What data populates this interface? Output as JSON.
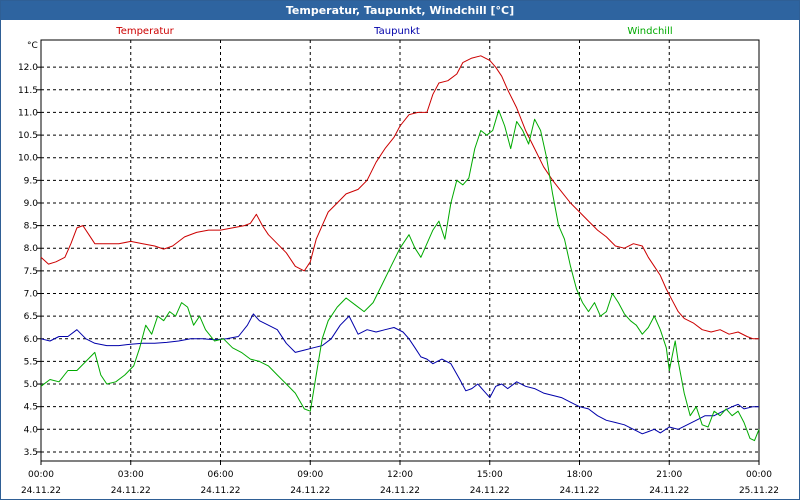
{
  "window": {
    "title": "Temperatur, Taupunkt, Windchill [°C]"
  },
  "chart_data": {
    "type": "line",
    "title": "Temperatur, Taupunkt, Windchill [°C]",
    "y_unit": "°C",
    "ylim": [
      3.3,
      12.6
    ],
    "xlim_hours": [
      0,
      24
    ],
    "y_ticks": [
      "3.5",
      "4.0",
      "4.5",
      "5.0",
      "5.5",
      "6.0",
      "6.5",
      "7.0",
      "7.5",
      "8.0",
      "8.5",
      "9.0",
      "9.5",
      "10.0",
      "10.5",
      "11.0",
      "11.5",
      "12.0"
    ],
    "x_ticks": [
      {
        "time": "00:00",
        "date": "24.11.22"
      },
      {
        "time": "03:00",
        "date": "24.11.22"
      },
      {
        "time": "06:00",
        "date": "24.11.22"
      },
      {
        "time": "09:00",
        "date": "24.11.22"
      },
      {
        "time": "12:00",
        "date": "24.11.22"
      },
      {
        "time": "15:00",
        "date": "24.11.22"
      },
      {
        "time": "18:00",
        "date": "24.11.22"
      },
      {
        "time": "21:00",
        "date": "24.11.22"
      },
      {
        "time": "00:00",
        "date": "25.11.22"
      }
    ],
    "grid": true,
    "series": [
      {
        "name": "Temperatur",
        "color": "#cc0000",
        "points": [
          [
            0,
            7.8
          ],
          [
            0.25,
            7.65
          ],
          [
            0.5,
            7.7
          ],
          [
            0.8,
            7.8
          ],
          [
            1.0,
            8.1
          ],
          [
            1.2,
            8.45
          ],
          [
            1.4,
            8.5
          ],
          [
            1.6,
            8.3
          ],
          [
            1.8,
            8.1
          ],
          [
            2.2,
            8.1
          ],
          [
            2.6,
            8.1
          ],
          [
            3.0,
            8.15
          ],
          [
            3.4,
            8.1
          ],
          [
            3.8,
            8.05
          ],
          [
            4.1,
            7.98
          ],
          [
            4.4,
            8.05
          ],
          [
            4.8,
            8.25
          ],
          [
            5.2,
            8.35
          ],
          [
            5.6,
            8.4
          ],
          [
            6.0,
            8.4
          ],
          [
            6.4,
            8.45
          ],
          [
            6.8,
            8.5
          ],
          [
            7.0,
            8.55
          ],
          [
            7.2,
            8.75
          ],
          [
            7.4,
            8.5
          ],
          [
            7.6,
            8.3
          ],
          [
            7.9,
            8.1
          ],
          [
            8.2,
            7.9
          ],
          [
            8.5,
            7.6
          ],
          [
            8.8,
            7.5
          ],
          [
            9.0,
            7.7
          ],
          [
            9.2,
            8.2
          ],
          [
            9.4,
            8.5
          ],
          [
            9.6,
            8.8
          ],
          [
            9.9,
            9.0
          ],
          [
            10.2,
            9.2
          ],
          [
            10.6,
            9.3
          ],
          [
            10.9,
            9.5
          ],
          [
            11.2,
            9.9
          ],
          [
            11.5,
            10.2
          ],
          [
            11.8,
            10.45
          ],
          [
            12.0,
            10.7
          ],
          [
            12.3,
            10.95
          ],
          [
            12.6,
            11.0
          ],
          [
            12.9,
            11.0
          ],
          [
            13.1,
            11.4
          ],
          [
            13.3,
            11.65
          ],
          [
            13.6,
            11.7
          ],
          [
            13.9,
            11.85
          ],
          [
            14.1,
            12.1
          ],
          [
            14.4,
            12.2
          ],
          [
            14.7,
            12.25
          ],
          [
            15.0,
            12.15
          ],
          [
            15.2,
            12.0
          ],
          [
            15.4,
            11.8
          ],
          [
            15.6,
            11.5
          ],
          [
            15.9,
            11.1
          ],
          [
            16.2,
            10.6
          ],
          [
            16.5,
            10.2
          ],
          [
            16.8,
            9.8
          ],
          [
            17.1,
            9.5
          ],
          [
            17.4,
            9.25
          ],
          [
            17.7,
            9.0
          ],
          [
            18.0,
            8.8
          ],
          [
            18.3,
            8.6
          ],
          [
            18.6,
            8.4
          ],
          [
            18.9,
            8.25
          ],
          [
            19.2,
            8.05
          ],
          [
            19.5,
            8.0
          ],
          [
            19.8,
            8.1
          ],
          [
            20.1,
            8.05
          ],
          [
            20.3,
            7.8
          ],
          [
            20.5,
            7.6
          ],
          [
            20.7,
            7.4
          ],
          [
            20.9,
            7.1
          ],
          [
            21.1,
            6.85
          ],
          [
            21.3,
            6.6
          ],
          [
            21.5,
            6.45
          ],
          [
            21.8,
            6.35
          ],
          [
            22.1,
            6.2
          ],
          [
            22.4,
            6.15
          ],
          [
            22.7,
            6.2
          ],
          [
            23.0,
            6.1
          ],
          [
            23.3,
            6.15
          ],
          [
            23.6,
            6.05
          ],
          [
            23.8,
            6.0
          ],
          [
            24.0,
            6.0
          ]
        ]
      },
      {
        "name": "Taupunkt",
        "color": "#0000aa",
        "points": [
          [
            0,
            6.0
          ],
          [
            0.3,
            5.95
          ],
          [
            0.6,
            6.05
          ],
          [
            0.9,
            6.05
          ],
          [
            1.2,
            6.2
          ],
          [
            1.5,
            6.0
          ],
          [
            1.8,
            5.9
          ],
          [
            2.2,
            5.85
          ],
          [
            2.6,
            5.85
          ],
          [
            3.0,
            5.88
          ],
          [
            3.4,
            5.9
          ],
          [
            3.8,
            5.9
          ],
          [
            4.2,
            5.92
          ],
          [
            4.6,
            5.95
          ],
          [
            5.0,
            6.0
          ],
          [
            5.4,
            6.0
          ],
          [
            5.8,
            5.98
          ],
          [
            6.2,
            6.0
          ],
          [
            6.6,
            6.05
          ],
          [
            6.9,
            6.3
          ],
          [
            7.1,
            6.55
          ],
          [
            7.3,
            6.4
          ],
          [
            7.6,
            6.3
          ],
          [
            7.9,
            6.2
          ],
          [
            8.2,
            5.9
          ],
          [
            8.5,
            5.7
          ],
          [
            8.8,
            5.75
          ],
          [
            9.1,
            5.8
          ],
          [
            9.4,
            5.85
          ],
          [
            9.7,
            6.0
          ],
          [
            10.0,
            6.3
          ],
          [
            10.3,
            6.5
          ],
          [
            10.6,
            6.1
          ],
          [
            10.9,
            6.2
          ],
          [
            11.2,
            6.15
          ],
          [
            11.5,
            6.2
          ],
          [
            11.8,
            6.25
          ],
          [
            12.1,
            6.15
          ],
          [
            12.3,
            6.0
          ],
          [
            12.5,
            5.8
          ],
          [
            12.7,
            5.6
          ],
          [
            12.9,
            5.55
          ],
          [
            13.1,
            5.45
          ],
          [
            13.4,
            5.55
          ],
          [
            13.7,
            5.45
          ],
          [
            14.0,
            5.1
          ],
          [
            14.2,
            4.85
          ],
          [
            14.4,
            4.9
          ],
          [
            14.6,
            5.0
          ],
          [
            14.8,
            4.85
          ],
          [
            15.0,
            4.7
          ],
          [
            15.2,
            4.95
          ],
          [
            15.4,
            5.0
          ],
          [
            15.6,
            4.9
          ],
          [
            15.9,
            5.05
          ],
          [
            16.2,
            4.95
          ],
          [
            16.5,
            4.9
          ],
          [
            16.8,
            4.8
          ],
          [
            17.1,
            4.75
          ],
          [
            17.4,
            4.7
          ],
          [
            17.7,
            4.6
          ],
          [
            18.0,
            4.5
          ],
          [
            18.3,
            4.45
          ],
          [
            18.6,
            4.3
          ],
          [
            18.9,
            4.2
          ],
          [
            19.2,
            4.15
          ],
          [
            19.5,
            4.1
          ],
          [
            19.8,
            4.0
          ],
          [
            20.1,
            3.9
          ],
          [
            20.3,
            3.95
          ],
          [
            20.5,
            4.0
          ],
          [
            20.7,
            3.92
          ],
          [
            21.0,
            4.05
          ],
          [
            21.3,
            4.0
          ],
          [
            21.6,
            4.1
          ],
          [
            21.9,
            4.2
          ],
          [
            22.2,
            4.3
          ],
          [
            22.5,
            4.3
          ],
          [
            22.8,
            4.4
          ],
          [
            23.1,
            4.5
          ],
          [
            23.3,
            4.55
          ],
          [
            23.5,
            4.45
          ],
          [
            23.8,
            4.5
          ],
          [
            24.0,
            4.5
          ]
        ]
      },
      {
        "name": "Windchill",
        "color": "#00aa00",
        "points": [
          [
            0,
            4.95
          ],
          [
            0.3,
            5.1
          ],
          [
            0.6,
            5.05
          ],
          [
            0.9,
            5.3
          ],
          [
            1.2,
            5.3
          ],
          [
            1.5,
            5.5
          ],
          [
            1.8,
            5.7
          ],
          [
            2.0,
            5.2
          ],
          [
            2.2,
            5.0
          ],
          [
            2.5,
            5.05
          ],
          [
            2.8,
            5.2
          ],
          [
            3.1,
            5.4
          ],
          [
            3.3,
            5.8
          ],
          [
            3.5,
            6.3
          ],
          [
            3.7,
            6.1
          ],
          [
            3.9,
            6.5
          ],
          [
            4.1,
            6.4
          ],
          [
            4.3,
            6.6
          ],
          [
            4.5,
            6.5
          ],
          [
            4.7,
            6.8
          ],
          [
            4.9,
            6.7
          ],
          [
            5.1,
            6.3
          ],
          [
            5.3,
            6.5
          ],
          [
            5.5,
            6.2
          ],
          [
            5.8,
            5.95
          ],
          [
            6.1,
            6.0
          ],
          [
            6.4,
            5.8
          ],
          [
            6.7,
            5.7
          ],
          [
            7.0,
            5.55
          ],
          [
            7.3,
            5.5
          ],
          [
            7.6,
            5.4
          ],
          [
            7.9,
            5.2
          ],
          [
            8.2,
            5.0
          ],
          [
            8.5,
            4.8
          ],
          [
            8.8,
            4.45
          ],
          [
            9.0,
            4.4
          ],
          [
            9.2,
            5.2
          ],
          [
            9.4,
            6.0
          ],
          [
            9.6,
            6.4
          ],
          [
            9.9,
            6.7
          ],
          [
            10.2,
            6.9
          ],
          [
            10.5,
            6.75
          ],
          [
            10.8,
            6.6
          ],
          [
            11.1,
            6.8
          ],
          [
            11.4,
            7.2
          ],
          [
            11.7,
            7.6
          ],
          [
            12.0,
            8.0
          ],
          [
            12.3,
            8.3
          ],
          [
            12.5,
            8.0
          ],
          [
            12.7,
            7.8
          ],
          [
            12.9,
            8.1
          ],
          [
            13.1,
            8.4
          ],
          [
            13.3,
            8.6
          ],
          [
            13.5,
            8.2
          ],
          [
            13.7,
            9.0
          ],
          [
            13.9,
            9.5
          ],
          [
            14.1,
            9.4
          ],
          [
            14.3,
            9.55
          ],
          [
            14.5,
            10.2
          ],
          [
            14.7,
            10.6
          ],
          [
            14.9,
            10.5
          ],
          [
            15.1,
            10.6
          ],
          [
            15.3,
            11.05
          ],
          [
            15.5,
            10.7
          ],
          [
            15.7,
            10.2
          ],
          [
            15.9,
            10.8
          ],
          [
            16.1,
            10.6
          ],
          [
            16.3,
            10.3
          ],
          [
            16.5,
            10.85
          ],
          [
            16.7,
            10.6
          ],
          [
            16.9,
            10.0
          ],
          [
            17.1,
            9.2
          ],
          [
            17.3,
            8.5
          ],
          [
            17.5,
            8.2
          ],
          [
            17.7,
            7.6
          ],
          [
            17.9,
            7.1
          ],
          [
            18.1,
            6.8
          ],
          [
            18.3,
            6.6
          ],
          [
            18.5,
            6.8
          ],
          [
            18.7,
            6.5
          ],
          [
            18.9,
            6.6
          ],
          [
            19.1,
            7.0
          ],
          [
            19.3,
            6.8
          ],
          [
            19.5,
            6.55
          ],
          [
            19.7,
            6.4
          ],
          [
            19.9,
            6.3
          ],
          [
            20.1,
            6.1
          ],
          [
            20.3,
            6.25
          ],
          [
            20.5,
            6.5
          ],
          [
            20.7,
            6.2
          ],
          [
            20.9,
            5.8
          ],
          [
            21.0,
            5.3
          ],
          [
            21.2,
            5.95
          ],
          [
            21.3,
            5.5
          ],
          [
            21.5,
            4.8
          ],
          [
            21.7,
            4.3
          ],
          [
            21.9,
            4.5
          ],
          [
            22.1,
            4.1
          ],
          [
            22.3,
            4.05
          ],
          [
            22.5,
            4.4
          ],
          [
            22.7,
            4.3
          ],
          [
            22.9,
            4.45
          ],
          [
            23.1,
            4.3
          ],
          [
            23.3,
            4.4
          ],
          [
            23.5,
            4.15
          ],
          [
            23.7,
            3.8
          ],
          [
            23.85,
            3.75
          ],
          [
            24.0,
            4.0
          ]
        ]
      }
    ]
  }
}
